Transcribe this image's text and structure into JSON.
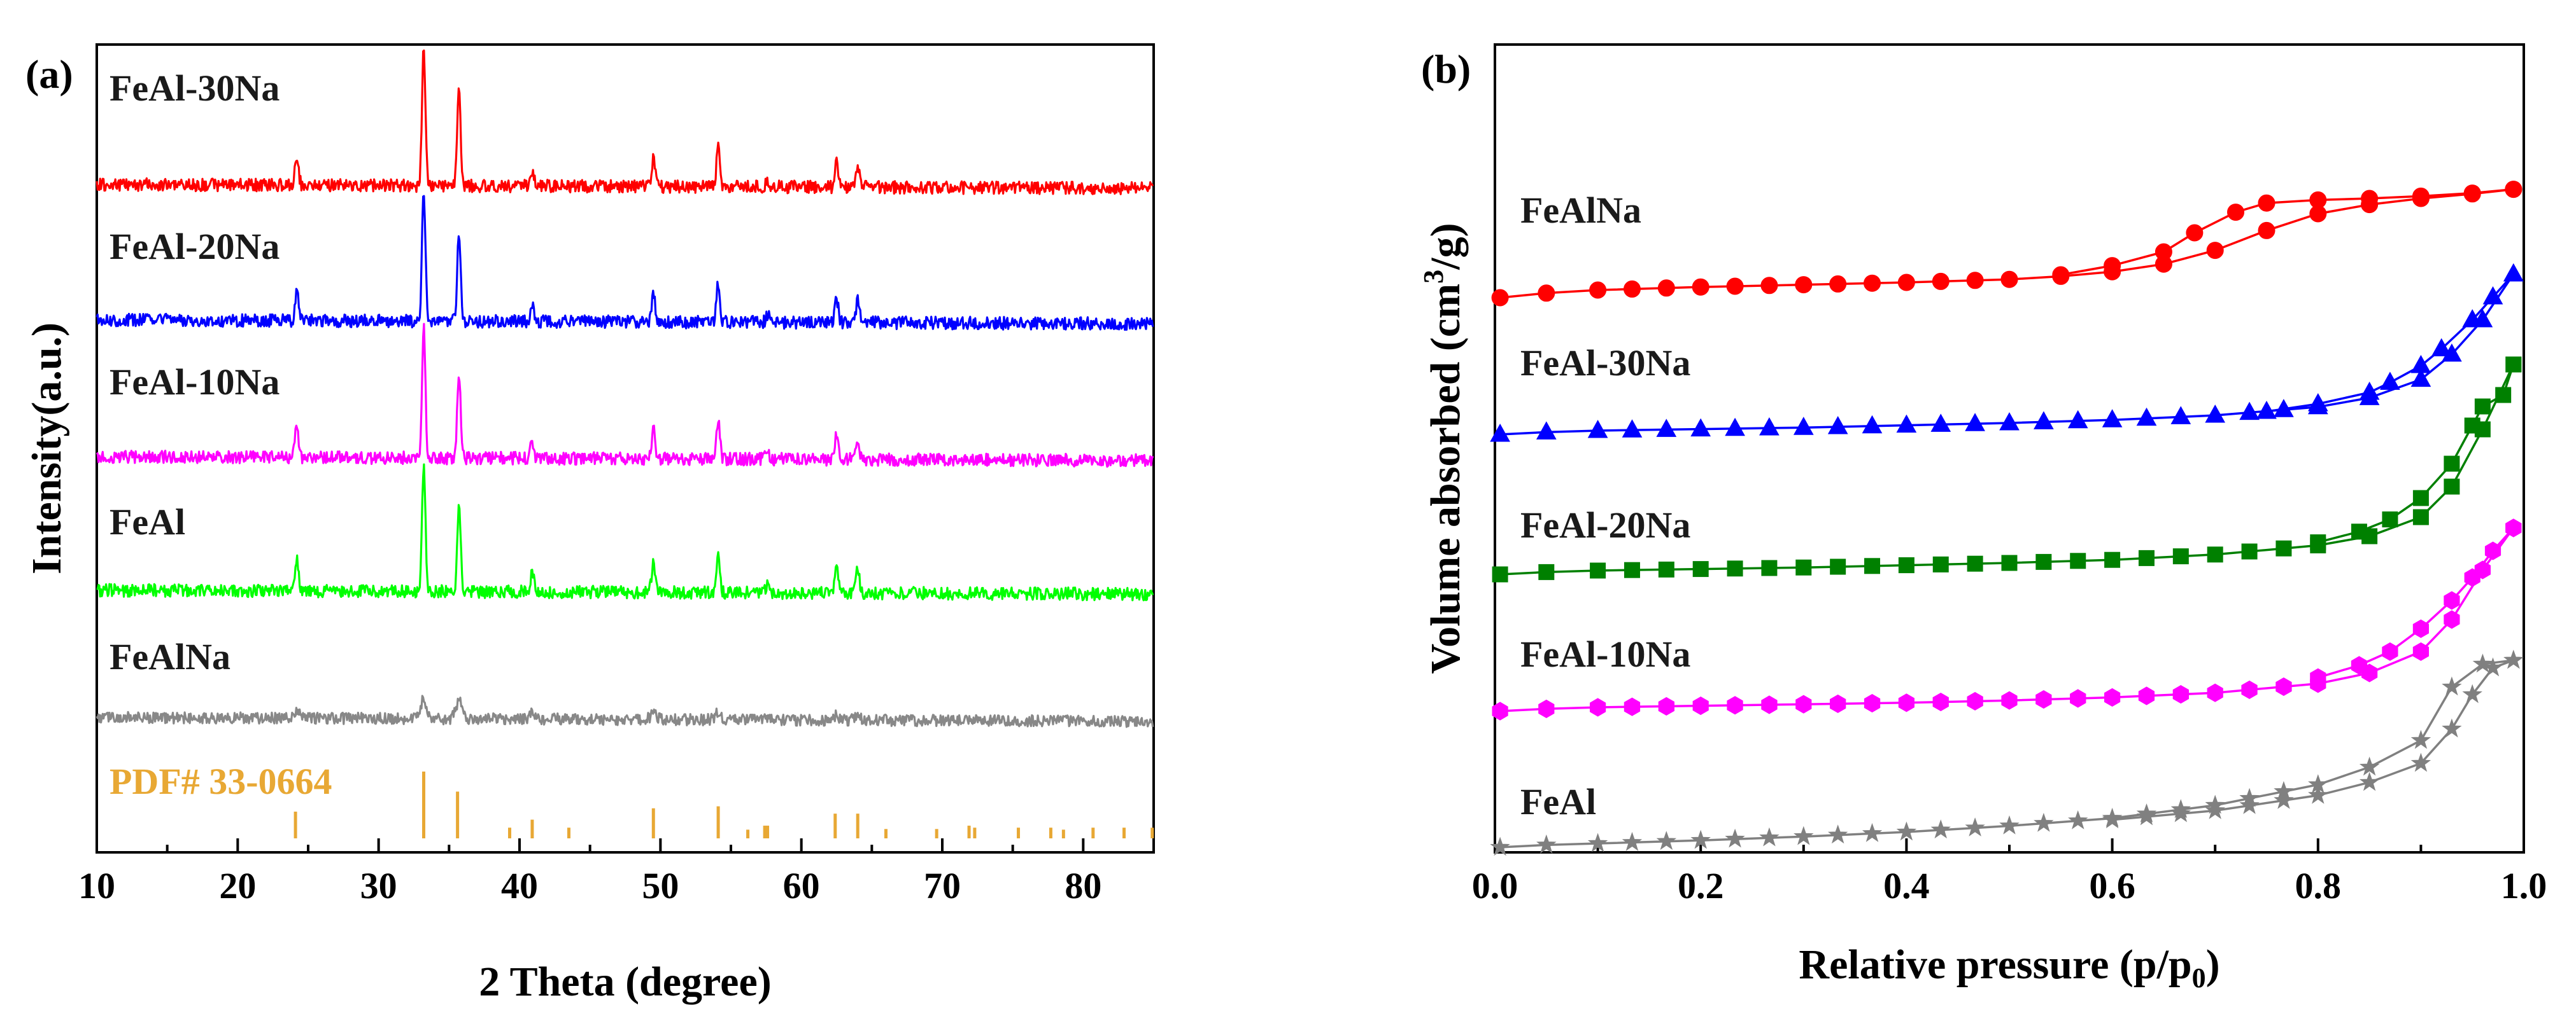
{
  "chart_data": [
    {
      "panel": "(a)",
      "type": "line",
      "xlabel": "2 Theta (degree)",
      "ylabel": "Intensity(a.u.)",
      "xlim": [
        10,
        85
      ],
      "xticks": [
        10,
        20,
        30,
        40,
        50,
        60,
        70,
        80
      ],
      "yticks": [],
      "peaks_2theta": [
        24.2,
        33.2,
        35.7,
        40.9,
        49.5,
        54.1,
        57.6,
        62.5,
        64.0
      ],
      "series": [
        {
          "name": "FeAl-30Na",
          "color": "#ff0000",
          "peak_heights": [
            0.22,
            1.0,
            0.68,
            0.12,
            0.2,
            0.3,
            0.05,
            0.18,
            0.16
          ]
        },
        {
          "name": "FeAl-20Na",
          "color": "#0000ff",
          "peak_heights": [
            0.22,
            1.0,
            0.7,
            0.13,
            0.21,
            0.3,
            0.06,
            0.18,
            0.18
          ]
        },
        {
          "name": "FeAl-10Na",
          "color": "#ff00ff",
          "peak_heights": [
            0.25,
            1.0,
            0.65,
            0.14,
            0.23,
            0.28,
            0.06,
            0.19,
            0.16
          ]
        },
        {
          "name": "FeAl",
          "color": "#00ff00",
          "peak_heights": [
            0.25,
            1.0,
            0.7,
            0.16,
            0.25,
            0.28,
            0.07,
            0.18,
            0.18
          ]
        },
        {
          "name": "FeAlNa",
          "color": "#888888",
          "peak_heights": [
            0.08,
            0.3,
            0.28,
            0.08,
            0.08,
            0.1,
            0.03,
            0.07,
            0.07
          ]
        }
      ],
      "reference": {
        "name": "PDF# 33-0664",
        "color": "#e8a834",
        "sticks": [
          {
            "x": 24.1,
            "h": 0.4
          },
          {
            "x": 33.2,
            "h": 1.0
          },
          {
            "x": 35.6,
            "h": 0.7
          },
          {
            "x": 39.3,
            "h": 0.16
          },
          {
            "x": 40.9,
            "h": 0.28
          },
          {
            "x": 43.5,
            "h": 0.16
          },
          {
            "x": 49.5,
            "h": 0.45
          },
          {
            "x": 54.1,
            "h": 0.48
          },
          {
            "x": 56.2,
            "h": 0.13
          },
          {
            "x": 57.4,
            "h": 0.19
          },
          {
            "x": 57.6,
            "h": 0.19
          },
          {
            "x": 62.4,
            "h": 0.37
          },
          {
            "x": 64.0,
            "h": 0.37
          },
          {
            "x": 66.0,
            "h": 0.14
          },
          {
            "x": 69.6,
            "h": 0.14
          },
          {
            "x": 71.9,
            "h": 0.19
          },
          {
            "x": 72.3,
            "h": 0.16
          },
          {
            "x": 75.4,
            "h": 0.16
          },
          {
            "x": 77.7,
            "h": 0.16
          },
          {
            "x": 78.6,
            "h": 0.13
          },
          {
            "x": 80.7,
            "h": 0.16
          },
          {
            "x": 82.9,
            "h": 0.16
          },
          {
            "x": 84.9,
            "h": 0.16
          }
        ]
      }
    },
    {
      "panel": "(b)",
      "type": "line",
      "xlabel": "Relative pressure (p/p",
      "xlabel_sub": "0",
      "xlabel_close": ")",
      "ylabel": "Volume absorbed (cm",
      "ylabel_sup": "3",
      "ylabel_close": "/g)",
      "xlim": [
        0.0,
        1.0
      ],
      "xticks": [
        "0.0",
        "0.2",
        "0.4",
        "0.6",
        "0.8",
        "1.0"
      ],
      "yticks": [],
      "series": [
        {
          "name": "FeAlNa",
          "color": "#ff0000",
          "marker": "circle",
          "adsorption": [
            [
              0.005,
              0.0
            ],
            [
              0.05,
              0.06
            ],
            [
              0.1,
              0.1
            ],
            [
              0.2,
              0.14
            ],
            [
              0.3,
              0.17
            ],
            [
              0.4,
              0.2
            ],
            [
              0.5,
              0.24
            ],
            [
              0.55,
              0.28
            ],
            [
              0.6,
              0.34
            ],
            [
              0.65,
              0.44
            ],
            [
              0.7,
              0.62
            ],
            [
              0.75,
              0.88
            ],
            [
              0.8,
              1.1
            ],
            [
              0.85,
              1.22
            ],
            [
              0.9,
              1.3
            ],
            [
              0.95,
              1.36
            ],
            [
              0.99,
              1.42
            ]
          ],
          "desorption": [
            [
              0.99,
              1.42
            ],
            [
              0.95,
              1.37
            ],
            [
              0.9,
              1.33
            ],
            [
              0.85,
              1.3
            ],
            [
              0.8,
              1.28
            ],
            [
              0.75,
              1.24
            ],
            [
              0.72,
              1.12
            ],
            [
              0.68,
              0.85
            ],
            [
              0.65,
              0.6
            ],
            [
              0.6,
              0.42
            ],
            [
              0.55,
              0.3
            ]
          ]
        },
        {
          "name": "FeAl-30Na",
          "color": "#0000ff",
          "marker": "triangle",
          "adsorption": [
            [
              0.005,
              0.0
            ],
            [
              0.05,
              0.03
            ],
            [
              0.1,
              0.05
            ],
            [
              0.2,
              0.07
            ],
            [
              0.3,
              0.09
            ],
            [
              0.4,
              0.12
            ],
            [
              0.5,
              0.15
            ],
            [
              0.6,
              0.19
            ],
            [
              0.7,
              0.25
            ],
            [
              0.8,
              0.36
            ],
            [
              0.85,
              0.48
            ],
            [
              0.9,
              0.72
            ],
            [
              0.93,
              1.05
            ],
            [
              0.96,
              1.5
            ],
            [
              0.99,
              2.1
            ]
          ],
          "desorption": [
            [
              0.99,
              2.1
            ],
            [
              0.97,
              1.8
            ],
            [
              0.95,
              1.5
            ],
            [
              0.92,
              1.12
            ],
            [
              0.9,
              0.9
            ],
            [
              0.87,
              0.68
            ],
            [
              0.85,
              0.55
            ],
            [
              0.8,
              0.4
            ],
            [
              0.75,
              0.3
            ]
          ]
        },
        {
          "name": "FeAl-20Na",
          "color": "#008000",
          "marker": "square",
          "adsorption": [
            [
              0.005,
              0.0
            ],
            [
              0.05,
              0.03
            ],
            [
              0.1,
              0.05
            ],
            [
              0.2,
              0.07
            ],
            [
              0.3,
              0.09
            ],
            [
              0.4,
              0.12
            ],
            [
              0.5,
              0.15
            ],
            [
              0.6,
              0.19
            ],
            [
              0.7,
              0.26
            ],
            [
              0.8,
              0.38
            ],
            [
              0.85,
              0.5
            ],
            [
              0.9,
              0.75
            ],
            [
              0.93,
              1.15
            ],
            [
              0.96,
              1.9
            ],
            [
              0.99,
              2.75
            ]
          ],
          "desorption": [
            [
              0.99,
              2.75
            ],
            [
              0.98,
              2.35
            ],
            [
              0.96,
              2.2
            ],
            [
              0.95,
              1.95
            ],
            [
              0.93,
              1.45
            ],
            [
              0.9,
              1.0
            ],
            [
              0.87,
              0.72
            ],
            [
              0.84,
              0.56
            ],
            [
              0.8,
              0.42
            ]
          ]
        },
        {
          "name": "FeAl-10Na",
          "color": "#ff00ff",
          "marker": "hexagon",
          "adsorption": [
            [
              0.005,
              0.0
            ],
            [
              0.05,
              0.03
            ],
            [
              0.1,
              0.05
            ],
            [
              0.2,
              0.07
            ],
            [
              0.3,
              0.09
            ],
            [
              0.4,
              0.11
            ],
            [
              0.5,
              0.14
            ],
            [
              0.6,
              0.18
            ],
            [
              0.7,
              0.24
            ],
            [
              0.8,
              0.36
            ],
            [
              0.85,
              0.5
            ],
            [
              0.9,
              0.78
            ],
            [
              0.93,
              1.2
            ],
            [
              0.96,
              1.85
            ],
            [
              0.99,
              2.4
            ]
          ],
          "desorption": [
            [
              0.99,
              2.4
            ],
            [
              0.97,
              2.1
            ],
            [
              0.95,
              1.75
            ],
            [
              0.93,
              1.45
            ],
            [
              0.9,
              1.08
            ],
            [
              0.87,
              0.78
            ],
            [
              0.84,
              0.6
            ],
            [
              0.8,
              0.44
            ]
          ]
        },
        {
          "name": "FeAl",
          "color": "#808080",
          "marker": "star",
          "adsorption": [
            [
              0.005,
              0.0
            ],
            [
              0.05,
              0.03
            ],
            [
              0.1,
              0.05
            ],
            [
              0.2,
              0.09
            ],
            [
              0.3,
              0.14
            ],
            [
              0.4,
              0.2
            ],
            [
              0.5,
              0.28
            ],
            [
              0.6,
              0.38
            ],
            [
              0.7,
              0.55
            ],
            [
              0.8,
              0.82
            ],
            [
              0.85,
              1.05
            ],
            [
              0.9,
              1.4
            ],
            [
              0.93,
              2.1
            ],
            [
              0.96,
              2.4
            ],
            [
              0.99,
              2.45
            ]
          ],
          "desorption": [
            [
              0.99,
              2.45
            ],
            [
              0.97,
              2.35
            ],
            [
              0.95,
              2.0
            ],
            [
              0.93,
              1.55
            ],
            [
              0.9,
              1.1
            ],
            [
              0.85,
              0.85
            ],
            [
              0.8,
              0.68
            ],
            [
              0.7,
              0.48
            ],
            [
              0.6,
              0.36
            ]
          ]
        }
      ]
    }
  ]
}
